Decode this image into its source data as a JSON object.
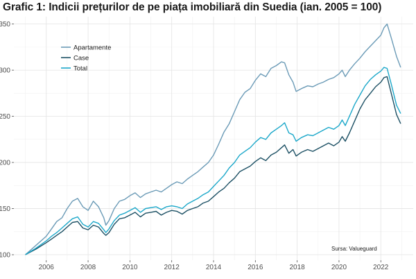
{
  "chart_data": {
    "type": "line",
    "title": "Grafic 1: Indicii prețurilor de pe piața imobiliară din Suedia (ian. 2005 = 100)",
    "xlabel": "",
    "ylabel": "",
    "xlim": [
      2004.45,
      2023.55
    ],
    "ylim": [
      94,
      358
    ],
    "xticks": [
      2006,
      2008,
      2010,
      2012,
      2014,
      2016,
      2018,
      2020,
      2022
    ],
    "yticks": [
      100,
      150,
      200,
      250,
      300,
      350
    ],
    "grid": true,
    "legend_position": "top-left",
    "source_note": "Sursa: Valueguard",
    "series": [
      {
        "name": "Apartamente",
        "color": "#6a9ab6",
        "x": [
          2005.0,
          2005.5,
          2006.0,
          2006.25,
          2006.5,
          2006.75,
          2007.0,
          2007.25,
          2007.5,
          2007.75,
          2008.0,
          2008.25,
          2008.5,
          2008.75,
          2008.85,
          2009.0,
          2009.25,
          2009.5,
          2009.75,
          2010.0,
          2010.25,
          2010.5,
          2010.75,
          2011.0,
          2011.25,
          2011.5,
          2011.75,
          2012.0,
          2012.25,
          2012.5,
          2012.75,
          2013.0,
          2013.25,
          2013.5,
          2013.75,
          2014.0,
          2014.25,
          2014.5,
          2014.75,
          2015.0,
          2015.25,
          2015.5,
          2015.75,
          2016.0,
          2016.25,
          2016.5,
          2016.75,
          2017.0,
          2017.25,
          2017.4,
          2017.6,
          2017.8,
          2017.95,
          2018.2,
          2018.5,
          2018.75,
          2019.0,
          2019.25,
          2019.5,
          2019.75,
          2020.0,
          2020.15,
          2020.3,
          2020.5,
          2020.75,
          2021.0,
          2021.25,
          2021.5,
          2021.75,
          2022.0,
          2022.15,
          2022.3,
          2022.5,
          2022.75,
          2022.95
        ],
        "values": [
          100,
          110,
          120,
          128,
          136,
          140,
          150,
          158,
          161,
          152,
          148,
          158,
          152,
          140,
          132,
          137,
          150,
          158,
          160,
          164,
          167,
          162,
          166,
          168,
          170,
          168,
          172,
          176,
          179,
          177,
          182,
          186,
          190,
          195,
          200,
          208,
          220,
          233,
          242,
          255,
          268,
          276,
          280,
          289,
          296,
          293,
          302,
          305,
          309,
          308,
          295,
          287,
          277,
          280,
          283,
          282,
          285,
          287,
          290,
          292,
          296,
          300,
          293,
          300,
          307,
          313,
          320,
          326,
          332,
          338,
          346,
          350,
          335,
          315,
          303
        ]
      },
      {
        "name": "Case",
        "color": "#1b4f63",
        "x": [
          2005.0,
          2005.5,
          2006.0,
          2006.25,
          2006.5,
          2006.75,
          2007.0,
          2007.25,
          2007.5,
          2007.75,
          2008.0,
          2008.25,
          2008.5,
          2008.75,
          2008.85,
          2009.0,
          2009.25,
          2009.5,
          2009.75,
          2010.0,
          2010.25,
          2010.5,
          2010.75,
          2011.0,
          2011.25,
          2011.5,
          2011.75,
          2012.0,
          2012.25,
          2012.5,
          2012.75,
          2013.0,
          2013.25,
          2013.5,
          2013.75,
          2014.0,
          2014.25,
          2014.5,
          2014.75,
          2015.0,
          2015.25,
          2015.5,
          2015.75,
          2016.0,
          2016.25,
          2016.5,
          2016.75,
          2017.0,
          2017.25,
          2017.4,
          2017.6,
          2017.8,
          2017.95,
          2018.2,
          2018.5,
          2018.75,
          2019.0,
          2019.25,
          2019.5,
          2019.75,
          2020.0,
          2020.15,
          2020.3,
          2020.5,
          2020.75,
          2021.0,
          2021.25,
          2021.5,
          2021.75,
          2022.0,
          2022.15,
          2022.3,
          2022.5,
          2022.75,
          2022.95
        ],
        "values": [
          100,
          106,
          113,
          117,
          121,
          125,
          130,
          135,
          136,
          129,
          127,
          132,
          130,
          123,
          121,
          124,
          133,
          139,
          140,
          143,
          146,
          141,
          145,
          146,
          147,
          143,
          146,
          148,
          147,
          144,
          148,
          150,
          152,
          156,
          158,
          163,
          168,
          172,
          178,
          183,
          190,
          193,
          196,
          201,
          205,
          202,
          208,
          211,
          216,
          219,
          210,
          214,
          207,
          211,
          214,
          212,
          215,
          218,
          221,
          218,
          222,
          228,
          223,
          232,
          245,
          258,
          268,
          275,
          282,
          287,
          292,
          293,
          275,
          252,
          242
        ]
      },
      {
        "name": "Total",
        "color": "#1aa7c9",
        "x": [
          2005.0,
          2005.5,
          2006.0,
          2006.25,
          2006.5,
          2006.75,
          2007.0,
          2007.25,
          2007.5,
          2007.75,
          2008.0,
          2008.25,
          2008.5,
          2008.75,
          2008.85,
          2009.0,
          2009.25,
          2009.5,
          2009.75,
          2010.0,
          2010.25,
          2010.5,
          2010.75,
          2011.0,
          2011.25,
          2011.5,
          2011.75,
          2012.0,
          2012.25,
          2012.5,
          2012.75,
          2013.0,
          2013.25,
          2013.5,
          2013.75,
          2014.0,
          2014.25,
          2014.5,
          2014.75,
          2015.0,
          2015.25,
          2015.5,
          2015.75,
          2016.0,
          2016.25,
          2016.5,
          2016.75,
          2017.0,
          2017.25,
          2017.4,
          2017.6,
          2017.8,
          2017.95,
          2018.2,
          2018.5,
          2018.75,
          2019.0,
          2019.25,
          2019.5,
          2019.75,
          2020.0,
          2020.15,
          2020.3,
          2020.5,
          2020.75,
          2021.0,
          2021.25,
          2021.5,
          2021.75,
          2022.0,
          2022.15,
          2022.3,
          2022.5,
          2022.75,
          2022.95
        ],
        "values": [
          100,
          107,
          115,
          120,
          124,
          129,
          134,
          139,
          141,
          133,
          130,
          136,
          134,
          127,
          124,
          128,
          137,
          143,
          145,
          148,
          151,
          146,
          150,
          151,
          152,
          149,
          152,
          153,
          152,
          150,
          155,
          158,
          161,
          165,
          168,
          174,
          180,
          186,
          194,
          200,
          208,
          212,
          216,
          222,
          227,
          225,
          232,
          236,
          240,
          243,
          232,
          230,
          223,
          227,
          230,
          229,
          232,
          235,
          238,
          236,
          240,
          246,
          240,
          250,
          263,
          273,
          283,
          290,
          295,
          299,
          303,
          302,
          285,
          262,
          253
        ]
      }
    ]
  }
}
